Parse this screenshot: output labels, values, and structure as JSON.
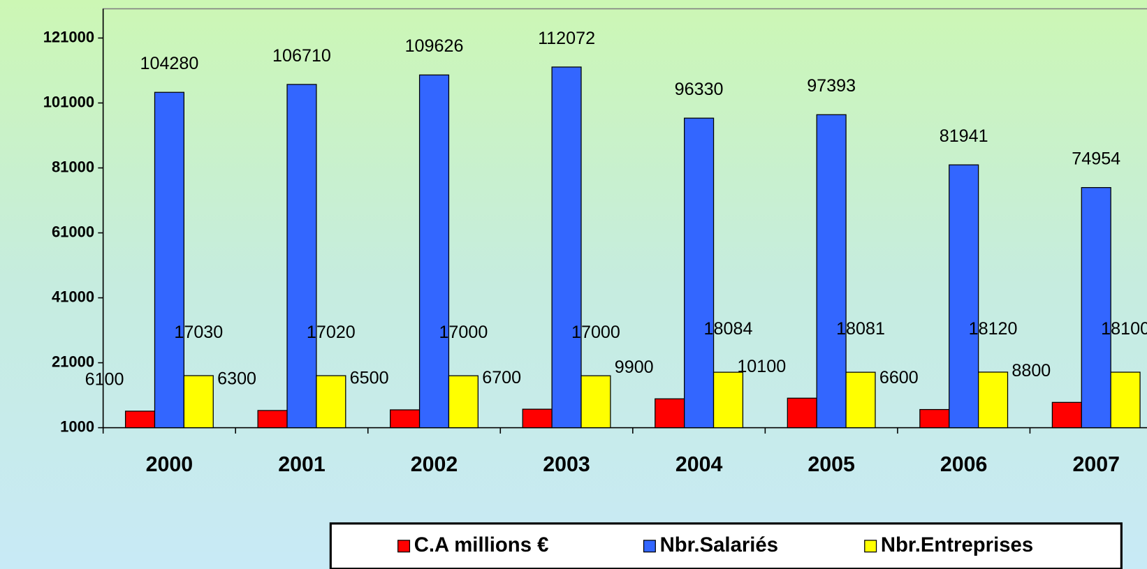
{
  "chart_data": {
    "type": "bar",
    "categories": [
      "2000",
      "2001",
      "2002",
      "2003",
      "2004",
      "2005",
      "2006",
      "2007"
    ],
    "series": [
      {
        "name": "C.A millions €",
        "color": "#ff0000",
        "values": [
          6100,
          6300,
          6500,
          6700,
          9900,
          10100,
          6600,
          8800
        ]
      },
      {
        "name": "Nbr.Salariés",
        "color": "#3366ff",
        "values": [
          104280,
          106710,
          109626,
          112072,
          96330,
          97393,
          81941,
          74954
        ]
      },
      {
        "name": "Nbr.Entreprises",
        "color": "#ffff00",
        "values": [
          17030,
          17020,
          17000,
          17000,
          18084,
          18081,
          18120,
          18100
        ]
      }
    ],
    "ylim": [
      1000,
      121000
    ],
    "yticks": [
      1000,
      21000,
      41000,
      61000,
      81000,
      101000,
      121000
    ],
    "grid": false,
    "legend": "bottom"
  }
}
